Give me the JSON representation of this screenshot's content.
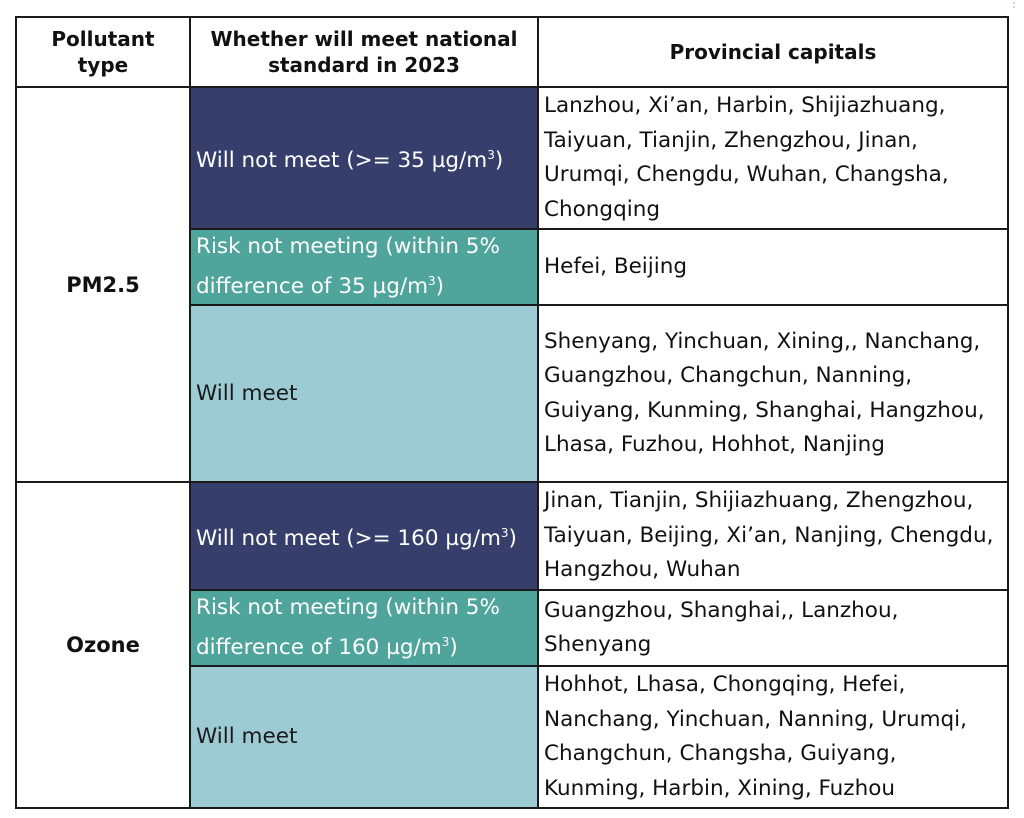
{
  "table": {
    "headers": {
      "pollutant": "Pollutant type",
      "whether": "Whether will meet national standard in 2023",
      "capitals": "Provincial capitals"
    },
    "pm25": {
      "label": "PM2.5",
      "not_meet_label": "Will not meet (>= 35 µg/m",
      "not_meet_sup": "3",
      "not_meet_end": ")",
      "not_meet_cities": "Lanzhou, Xi’an, Harbin, Shijiazhuang, Taiyuan, Tianjin, Zhengzhou, Jinan, Urumqi, Chengdu, Wuhan, Changsha, Chongqing",
      "risk_label": "Risk not meeting (within 5% difference of 35 µg/m",
      "risk_sup": "3",
      "risk_end": ")",
      "risk_cities": "Hefei, Beijing",
      "meet_label": "Will meet",
      "meet_cities": "Shenyang, Yinchuan, Xining,, Nanchang, Guangzhou, Changchun, Nanning, Guiyang, Kunming, Shanghai, Hangzhou, Lhasa, Fuzhou, Hohhot, Nanjing"
    },
    "ozone": {
      "label": "Ozone",
      "not_meet_label": "Will not meet (>= 160 µg/m",
      "not_meet_sup": "3",
      "not_meet_end": ")",
      "not_meet_cities": "Jinan, Tianjin, Shijiazhuang, Zhengzhou, Taiyuan, Beijing, Xi’an, Nanjing, Chengdu, Hangzhou, Wuhan",
      "risk_label": "Risk not meeting (within 5% difference of 160 µg/m",
      "risk_sup": "3",
      "risk_end": ")",
      "risk_cities": "Guangzhou, Shanghai,, Lanzhou, Shenyang",
      "meet_label": "Will meet",
      "meet_cities": "Hohhot, Lhasa, Chongqing, Hefei, Nanchang, Yinchuan, Nanning, Urumqi, Changchun, Changsha, Guiyang, Kunming, Harbin, Xining, Fuzhou"
    }
  },
  "colors": {
    "will_not_meet": "#363e6c",
    "risk_not_meeting": "#4fa49b",
    "will_meet": "#9dcbd4"
  },
  "icons": {
    "more": "more-vertical-icon"
  }
}
